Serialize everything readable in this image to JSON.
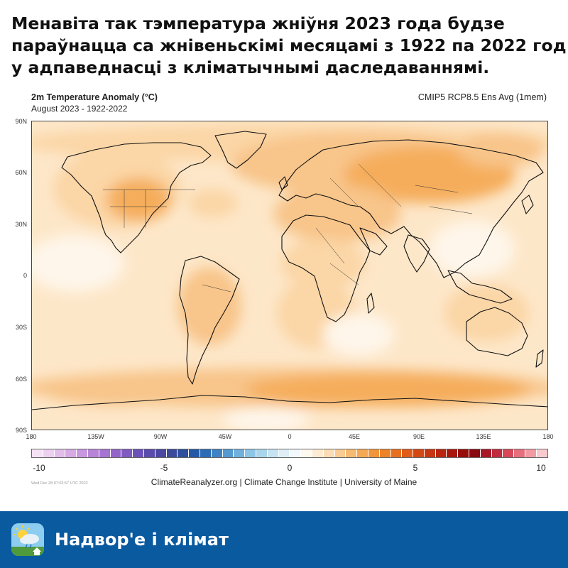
{
  "headline": {
    "lines": [
      "Менавіта так тэмпература жніўня 2023 года будзе",
      "параўнацца са жнівеньскімі месяцамі з 1922 па 2022 год",
      "у адпаведнасці з кліматычнымі даследаваннямі."
    ]
  },
  "figure": {
    "title": "2m Temperature Anomaly (°C)",
    "subtitle": "August 2023 - 1922-2022",
    "model": "CMIP5 RCP8.5 Ens Avg (1mem)",
    "lat_labels": [
      "90N",
      "60N",
      "30N",
      "0",
      "30S",
      "60S",
      "90S"
    ],
    "lon_labels": [
      "180",
      "135W",
      "90W",
      "45W",
      "0",
      "45E",
      "90E",
      "135E",
      "180"
    ],
    "colorbar": {
      "min": -10,
      "max": 10,
      "labels": [
        "-10",
        "-5",
        "0",
        "5",
        "10"
      ],
      "colors": [
        "#f5e2f5",
        "#edd0ef",
        "#e2bdea",
        "#d7aae5",
        "#c897df",
        "#b884d8",
        "#a674d2",
        "#9466cb",
        "#7f5bc2",
        "#6b52b8",
        "#5a4cad",
        "#4a48a2",
        "#3c4a9c",
        "#2e4f9e",
        "#2459a8",
        "#2c6cb7",
        "#3d82c5",
        "#5599d1",
        "#6fb1dc",
        "#8cc5e5",
        "#a9d6ec",
        "#c5e3f1",
        "#ddeef6",
        "#f2f8fb",
        "#fff8ee",
        "#fdebd3",
        "#fbdcb4",
        "#f9cc93",
        "#f7ba72",
        "#f5a853",
        "#f2953a",
        "#ee8228",
        "#e86f1e",
        "#e05c18",
        "#d54814",
        "#c83511",
        "#b9240e",
        "#a8160c",
        "#970d0a",
        "#8a0a12",
        "#a81626",
        "#c02c3d",
        "#d84658",
        "#e66f7d",
        "#f29aa4",
        "#fac9cd"
      ]
    },
    "legend_credits": "ClimateReanalyzer.org | Climate Change Institute | University of Maine",
    "timestamp": "Wed Dec 28 07:03:57 UTC 2022"
  },
  "colors": {
    "sea_base": "#fde7c9",
    "warm_1": "#fbd6a6",
    "warm_2": "#f8c58a",
    "warm_3": "#f5ad5c",
    "warm_4": "#f19b3e",
    "cool": "#fef6ea",
    "footer_bg": "#0a5aa0"
  },
  "footer": {
    "brand": "Надвор'е і клімат",
    "icon": "weather-app-icon"
  }
}
